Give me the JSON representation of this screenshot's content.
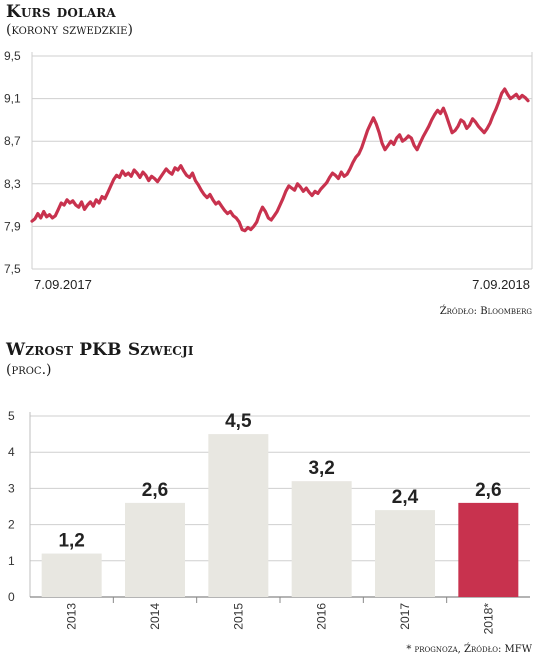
{
  "chart_data": [
    {
      "type": "line",
      "title": "Kurs dolara",
      "subtitle": "(korony szwedzkie)",
      "ylabel": "",
      "xlabel": "",
      "ylim": [
        7.5,
        9.5
      ],
      "yticks": [
        "9,5",
        "9,1",
        "8,7",
        "8,3",
        "7,9",
        "7,5"
      ],
      "yticks_values": [
        9.5,
        9.1,
        8.7,
        8.3,
        7.9,
        7.5
      ],
      "x_labels": [
        "7.09.2017",
        "7.09.2018"
      ],
      "grid": true,
      "line_color": "#c8324e",
      "series": [
        {
          "values": [
            7.95,
            7.97,
            8.02,
            7.98,
            8.04,
            7.99,
            8.01,
            7.98,
            8.0,
            8.06,
            8.12,
            8.1,
            8.15,
            8.12,
            8.14,
            8.1,
            8.08,
            8.13,
            8.06,
            8.1,
            8.13,
            8.09,
            8.15,
            8.12,
            8.18,
            8.16,
            8.22,
            8.28,
            8.34,
            8.38,
            8.36,
            8.42,
            8.38,
            8.4,
            8.37,
            8.43,
            8.4,
            8.36,
            8.41,
            8.38,
            8.33,
            8.37,
            8.35,
            8.32,
            8.36,
            8.4,
            8.44,
            8.41,
            8.39,
            8.45,
            8.43,
            8.47,
            8.42,
            8.38,
            8.36,
            8.4,
            8.33,
            8.29,
            8.24,
            8.2,
            8.17,
            8.2,
            8.15,
            8.11,
            8.13,
            8.09,
            8.05,
            8.02,
            8.04,
            8.0,
            7.98,
            7.94,
            7.87,
            7.86,
            7.89,
            7.87,
            7.9,
            7.94,
            8.02,
            8.08,
            8.04,
            7.98,
            7.96,
            8.0,
            8.04,
            8.1,
            8.16,
            8.23,
            8.28,
            8.26,
            8.24,
            8.3,
            8.27,
            8.23,
            8.26,
            8.22,
            8.19,
            8.23,
            8.21,
            8.25,
            8.28,
            8.31,
            8.36,
            8.4,
            8.38,
            8.35,
            8.41,
            8.37,
            8.39,
            8.44,
            8.5,
            8.55,
            8.58,
            8.64,
            8.72,
            8.8,
            8.86,
            8.92,
            8.86,
            8.78,
            8.68,
            8.62,
            8.66,
            8.7,
            8.67,
            8.73,
            8.76,
            8.7,
            8.72,
            8.75,
            8.73,
            8.66,
            8.62,
            8.68,
            8.74,
            8.79,
            8.84,
            8.9,
            8.95,
            8.99,
            8.96,
            9.01,
            8.94,
            8.86,
            8.78,
            8.8,
            8.84,
            8.9,
            8.88,
            8.82,
            8.85,
            8.91,
            8.88,
            8.84,
            8.81,
            8.78,
            8.82,
            8.87,
            8.94,
            9.0,
            9.07,
            9.15,
            9.19,
            9.14,
            9.1,
            9.12,
            9.14,
            9.1,
            9.13,
            9.11,
            9.08
          ]
        }
      ]
    },
    {
      "type": "bar",
      "title": "Wzrost PKB Szwecji",
      "subtitle": "(proc.)",
      "ylabel": "",
      "xlabel": "",
      "ylim": [
        0,
        5
      ],
      "yticks": [
        0,
        1,
        2,
        3,
        4,
        5
      ],
      "grid": true,
      "categories": [
        "2013",
        "2014",
        "2015",
        "2016",
        "2017",
        "2018*"
      ],
      "values": [
        1.2,
        2.6,
        4.5,
        3.2,
        2.4,
        2.6
      ],
      "value_labels": [
        "1,2",
        "2,6",
        "4,5",
        "3,2",
        "2,4",
        "2,6"
      ],
      "bar_color": "#e8e7e1",
      "highlight_color": "#c8324e",
      "highlight_index": 5
    }
  ],
  "sources": {
    "line": "Źródło: Bloomberg",
    "bar": "* prognoza, Źródło: MFW"
  }
}
